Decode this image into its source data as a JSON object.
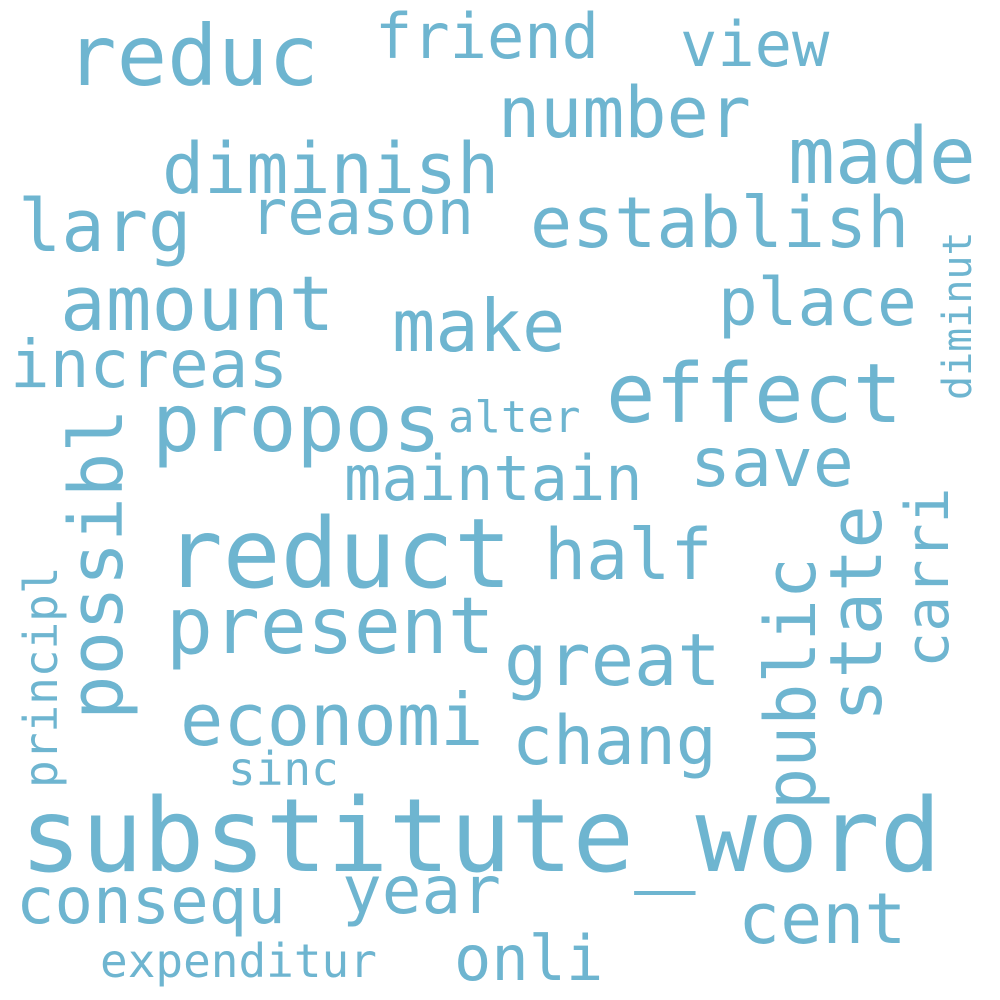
{
  "words": {
    "reduc": "reduc",
    "friend": "friend",
    "view": "view",
    "number": "number",
    "made": "made",
    "diminish": "diminish",
    "reason": "reason",
    "establish": "establish",
    "larg": "larg",
    "diminut": "diminut",
    "amount": "amount",
    "make": "make",
    "place": "place",
    "increas": "increas",
    "effect": "effect",
    "propos": "propos",
    "alter": "alter",
    "save": "save",
    "maintain": "maintain",
    "carri": "carri",
    "possibl": "possibl",
    "reduct": "reduct",
    "half": "half",
    "state": "state",
    "public": "public",
    "present": "present",
    "principl": "principl",
    "great": "great",
    "economi": "economi",
    "chang": "chang",
    "sinc": "sinc",
    "substitute_word": "substitute_word",
    "year": "year",
    "consequ": "consequ",
    "cent": "cent",
    "onli": "onli",
    "expenditur": "expenditur"
  },
  "colors": {
    "word": "#6eb5d0",
    "background": "#ffffff"
  }
}
